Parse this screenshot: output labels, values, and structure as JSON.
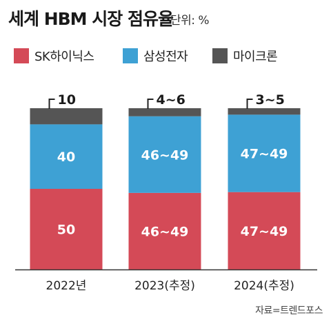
{
  "header": {
    "title": "세계 HBM 시장 점유율",
    "unit": "단위: %"
  },
  "legend": [
    {
      "label": "SK하이닉스",
      "color": "#d44a57"
    },
    {
      "label": "삼성전자",
      "color": "#3ea1d4"
    },
    {
      "label": "마이크론",
      "color": "#555555"
    }
  ],
  "chart_data": {
    "type": "bar",
    "stacked": true,
    "categories": [
      "2022년",
      "2023(추정)",
      "2024(추정)"
    ],
    "series": [
      {
        "name": "SK하이닉스",
        "color": "#d44a57",
        "values": [
          50,
          47.5,
          48
        ],
        "labels": [
          "50",
          "46~49",
          "47~49"
        ]
      },
      {
        "name": "삼성전자",
        "color": "#3ea1d4",
        "values": [
          40,
          47.5,
          48
        ],
        "labels": [
          "40",
          "46~49",
          "47~49"
        ]
      },
      {
        "name": "마이크론",
        "color": "#555555",
        "values": [
          10,
          5,
          4
        ],
        "labels": [
          "10",
          "4~6",
          "3~5"
        ]
      }
    ],
    "ylim": [
      0,
      100
    ],
    "grid": false
  },
  "source": "자료=트렌드포스"
}
